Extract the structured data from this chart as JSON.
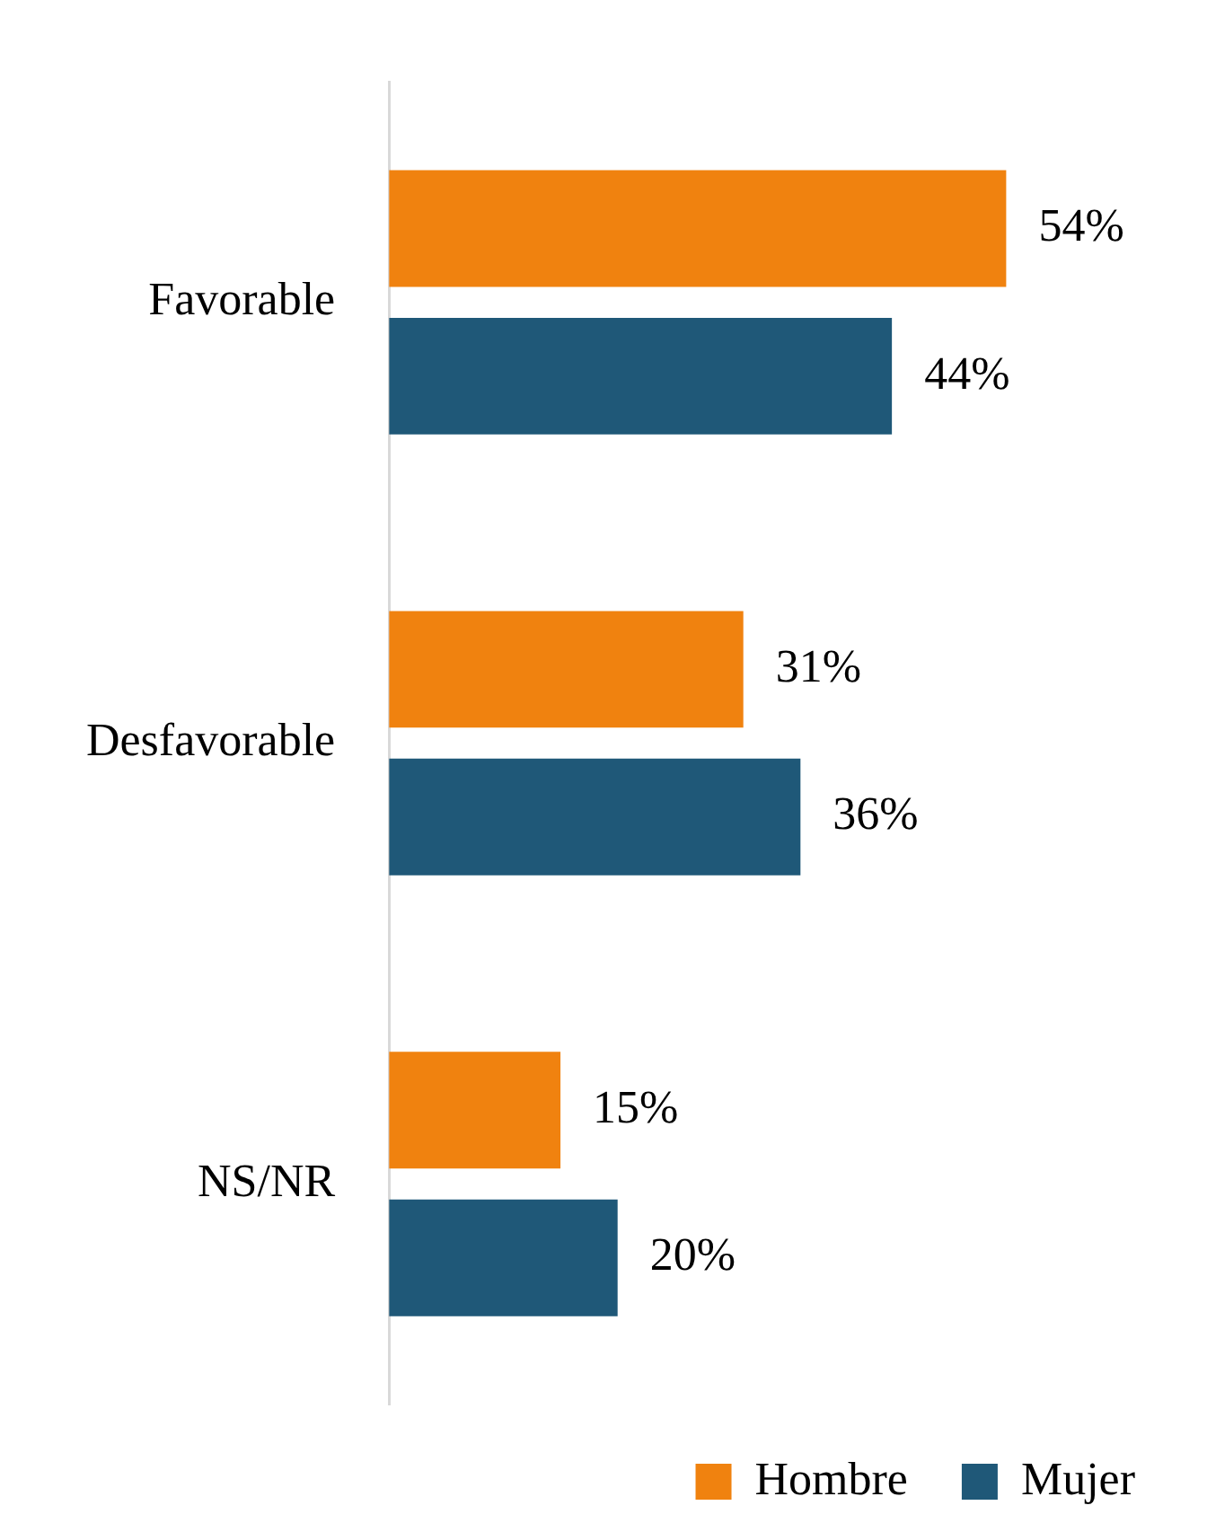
{
  "chart_data": {
    "type": "bar",
    "orientation": "horizontal",
    "categories": [
      "Favorable",
      "Desfavorable",
      "NS/NR"
    ],
    "series": [
      {
        "name": "Hombre",
        "color": "#f0820f",
        "values": [
          54,
          31,
          15
        ],
        "value_labels": [
          "54%",
          "31%",
          "15%"
        ]
      },
      {
        "name": "Mujer",
        "color": "#1f5878",
        "values": [
          44,
          36,
          20
        ],
        "value_labels": [
          "44%",
          "36%",
          "20%"
        ]
      }
    ],
    "legend": "bottom right",
    "grid": false,
    "tick_labels": "y"
  }
}
